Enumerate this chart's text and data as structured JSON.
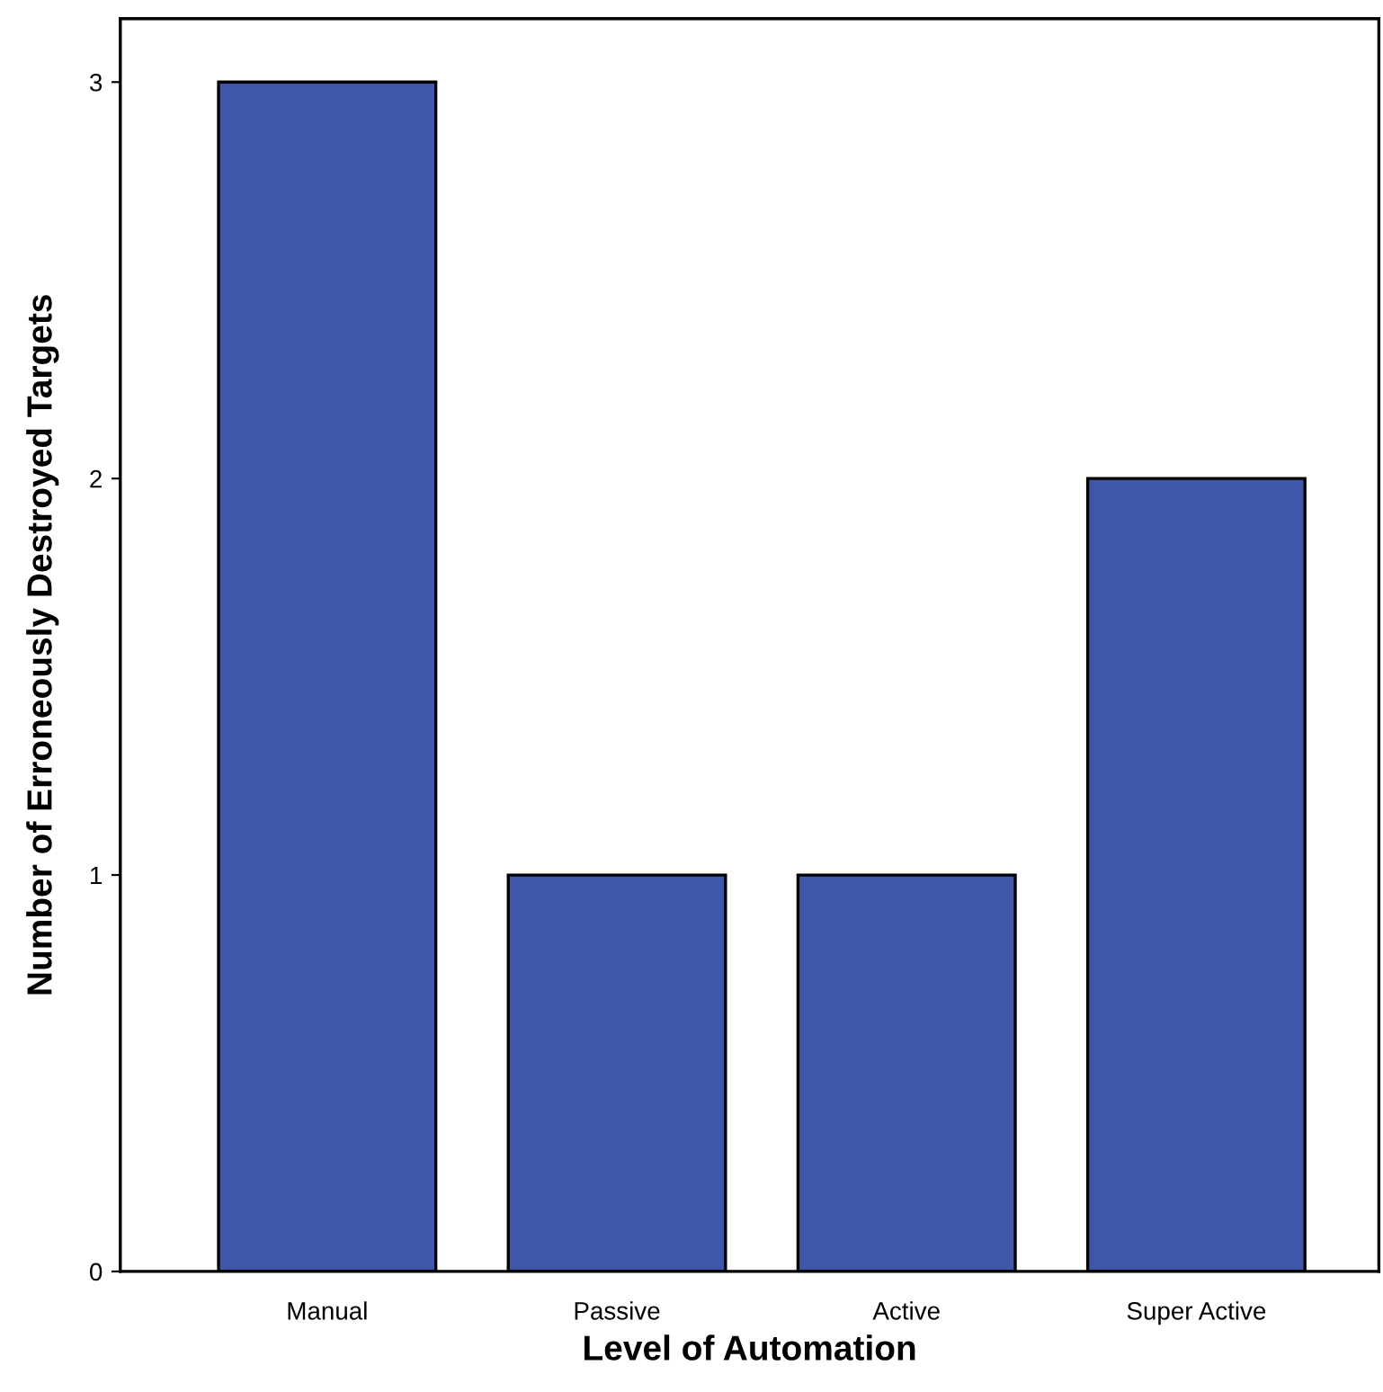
{
  "chart_data": {
    "type": "bar",
    "xlabel": "Level of Automation",
    "ylabel": "Number of Erroneously Destroyed Targets",
    "categories": [
      "Manual",
      "Passive",
      "Active",
      "Super Active"
    ],
    "values": [
      3,
      1,
      1,
      2
    ],
    "color": "#3f57a9",
    "ylim": [
      0,
      3.16
    ],
    "yticks": [
      0,
      1,
      2,
      3
    ],
    "grid": false
  }
}
